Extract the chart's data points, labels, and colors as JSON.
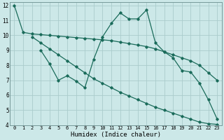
{
  "xlabel": "Humidex (Indice chaleur)",
  "bg_color": "#cce8e8",
  "grid_color": "#aacccc",
  "line_color": "#1a6b5a",
  "xlim": [
    -0.5,
    23.5
  ],
  "ylim": [
    4,
    12.2
  ],
  "xticks": [
    0,
    1,
    2,
    3,
    4,
    5,
    6,
    7,
    8,
    9,
    10,
    11,
    12,
    13,
    14,
    15,
    16,
    17,
    18,
    19,
    20,
    21,
    22,
    23
  ],
  "yticks": [
    4,
    5,
    6,
    7,
    8,
    9,
    10,
    11,
    12
  ],
  "line1_x": [
    0,
    1,
    2,
    3,
    4,
    5,
    6,
    7,
    8,
    9,
    10,
    11,
    12,
    13,
    14,
    15,
    16,
    17,
    18,
    19,
    20,
    21,
    22,
    23
  ],
  "line1_y": [
    12.0,
    10.2,
    10.1,
    10.05,
    10.0,
    9.95,
    9.9,
    9.85,
    9.8,
    9.75,
    9.7,
    9.65,
    9.55,
    9.45,
    9.35,
    9.25,
    9.1,
    8.9,
    8.7,
    8.5,
    8.3,
    8.0,
    7.5,
    7.0
  ],
  "line2_x": [
    2,
    3,
    4,
    5,
    6,
    7,
    8,
    9,
    10,
    11,
    12,
    13,
    14,
    15,
    16,
    17,
    18,
    19,
    20,
    21,
    22,
    23
  ],
  "line2_y": [
    9.9,
    9.5,
    9.1,
    8.7,
    8.3,
    7.9,
    7.5,
    7.1,
    6.8,
    6.5,
    6.2,
    5.95,
    5.7,
    5.45,
    5.2,
    5.0,
    4.8,
    4.6,
    4.4,
    4.2,
    4.1,
    4.05
  ],
  "line3_x": [
    3,
    4,
    5,
    6,
    7,
    8,
    9,
    10,
    11,
    12,
    13,
    14,
    15,
    16,
    17,
    18,
    19,
    20,
    21,
    22,
    23
  ],
  "line3_y": [
    9.0,
    8.1,
    7.0,
    7.3,
    6.95,
    6.5,
    8.4,
    9.9,
    10.8,
    11.5,
    11.1,
    11.1,
    11.7,
    9.5,
    8.9,
    8.5,
    7.65,
    7.55,
    6.8,
    5.7,
    4.4
  ]
}
